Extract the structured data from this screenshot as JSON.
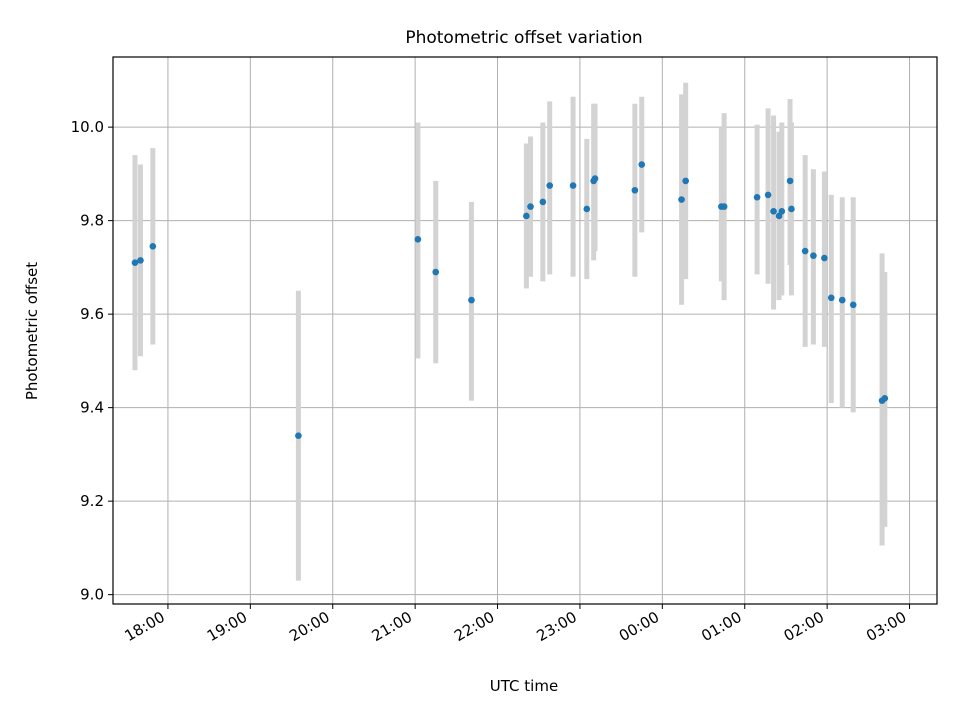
{
  "chart_data": {
    "type": "scatter",
    "title": "Photometric offset variation",
    "xlabel": "UTC time",
    "ylabel": "Photometric offset",
    "x_is_time": true,
    "xlim": [
      "17:20",
      "03:20"
    ],
    "ylim": [
      8.98,
      10.15
    ],
    "x_ticks": [
      "18:00",
      "19:00",
      "20:00",
      "21:00",
      "22:00",
      "23:00",
      "00:00",
      "01:00",
      "02:00",
      "03:00"
    ],
    "y_ticks": [
      "9.0",
      "9.2",
      "9.4",
      "9.6",
      "9.8",
      "10.0"
    ],
    "grid": true,
    "colors": {
      "points": "#1f77b4",
      "errorbars": "#d3d3d3",
      "grid": "#b0b0b0"
    },
    "series": [
      {
        "points": [
          {
            "x": "17:36",
            "y": 9.71,
            "lo": 9.48,
            "hi": 9.94
          },
          {
            "x": "17:40",
            "y": 9.715,
            "lo": 9.51,
            "hi": 9.92
          },
          {
            "x": "17:49",
            "y": 9.745,
            "lo": 9.535,
            "hi": 9.955
          },
          {
            "x": "19:35",
            "y": 9.34,
            "lo": 9.03,
            "hi": 9.65
          },
          {
            "x": "21:02",
            "y": 9.76,
            "lo": 9.505,
            "hi": 10.01
          },
          {
            "x": "21:15",
            "y": 9.69,
            "lo": 9.495,
            "hi": 9.885
          },
          {
            "x": "21:41",
            "y": 9.63,
            "lo": 9.415,
            "hi": 9.84
          },
          {
            "x": "22:21",
            "y": 9.81,
            "lo": 9.655,
            "hi": 9.965
          },
          {
            "x": "22:24",
            "y": 9.83,
            "lo": 9.68,
            "hi": 9.98
          },
          {
            "x": "22:33",
            "y": 9.84,
            "lo": 9.67,
            "hi": 10.01
          },
          {
            "x": "22:38",
            "y": 9.875,
            "lo": 9.685,
            "hi": 10.055
          },
          {
            "x": "22:55",
            "y": 9.875,
            "lo": 9.68,
            "hi": 10.065
          },
          {
            "x": "23:05",
            "y": 9.825,
            "lo": 9.675,
            "hi": 9.975
          },
          {
            "x": "23:10",
            "y": 9.885,
            "lo": 9.715,
            "hi": 10.05
          },
          {
            "x": "23:11",
            "y": 9.89,
            "lo": 9.735,
            "hi": 10.05
          },
          {
            "x": "23:40",
            "y": 9.865,
            "lo": 9.68,
            "hi": 10.05
          },
          {
            "x": "23:45",
            "y": 9.92,
            "lo": 9.775,
            "hi": 10.065
          },
          {
            "x": "00:14",
            "y": 9.845,
            "lo": 9.62,
            "hi": 10.07
          },
          {
            "x": "00:17",
            "y": 9.885,
            "lo": 9.675,
            "hi": 10.095
          },
          {
            "x": "00:43",
            "y": 9.83,
            "lo": 9.67,
            "hi": 10.0
          },
          {
            "x": "00:45",
            "y": 9.83,
            "lo": 9.63,
            "hi": 10.03
          },
          {
            "x": "01:09",
            "y": 9.85,
            "lo": 9.685,
            "hi": 10.005
          },
          {
            "x": "01:17",
            "y": 9.855,
            "lo": 9.665,
            "hi": 10.04
          },
          {
            "x": "01:21",
            "y": 9.82,
            "lo": 9.61,
            "hi": 10.025
          },
          {
            "x": "01:25",
            "y": 9.81,
            "lo": 9.63,
            "hi": 9.99
          },
          {
            "x": "01:27",
            "y": 9.82,
            "lo": 9.64,
            "hi": 10.01
          },
          {
            "x": "01:33",
            "y": 9.885,
            "lo": 9.705,
            "hi": 10.06
          },
          {
            "x": "01:34",
            "y": 9.825,
            "lo": 9.64,
            "hi": 10.01
          },
          {
            "x": "01:44",
            "y": 9.735,
            "lo": 9.53,
            "hi": 9.94
          },
          {
            "x": "01:50",
            "y": 9.725,
            "lo": 9.535,
            "hi": 9.91
          },
          {
            "x": "01:58",
            "y": 9.72,
            "lo": 9.53,
            "hi": 9.905
          },
          {
            "x": "02:03",
            "y": 9.635,
            "lo": 9.41,
            "hi": 9.855
          },
          {
            "x": "02:11",
            "y": 9.63,
            "lo": 9.4,
            "hi": 9.85
          },
          {
            "x": "02:19",
            "y": 9.62,
            "lo": 9.39,
            "hi": 9.85
          },
          {
            "x": "02:40",
            "y": 9.415,
            "lo": 9.105,
            "hi": 9.73
          },
          {
            "x": "02:42",
            "y": 9.42,
            "lo": 9.145,
            "hi": 9.69
          }
        ]
      }
    ]
  }
}
